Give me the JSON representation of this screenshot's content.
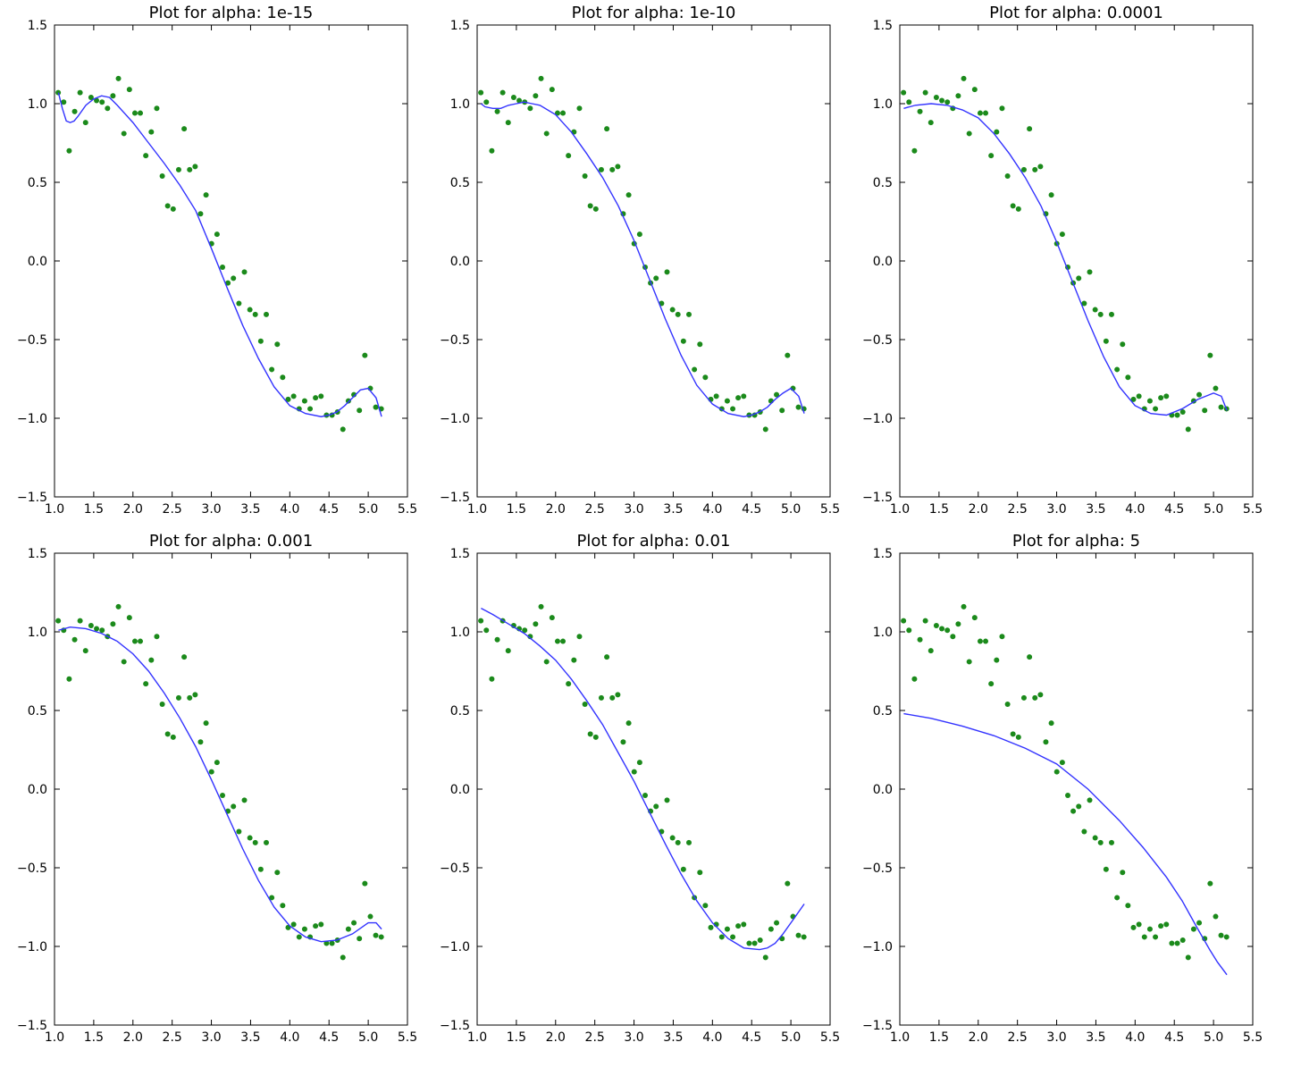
{
  "figure": {
    "background": "#ffffff"
  },
  "style": {
    "point_color": "#1b8a1b",
    "line_color": "#3333ff"
  },
  "axes_common": {
    "xlim": [
      1.0,
      5.5
    ],
    "ylim": [
      -1.5,
      1.5
    ],
    "xticks": [
      "1.0",
      "1.5",
      "2.0",
      "2.5",
      "3.0",
      "3.5",
      "4.0",
      "4.5",
      "5.0",
      "5.5"
    ],
    "yticks": [
      "1.5",
      "1.0",
      "0.5",
      "0.0",
      "−0.5",
      "−1.0",
      "−1.5"
    ]
  },
  "scatter_data": {
    "x": [
      1.047,
      1.117,
      1.187,
      1.257,
      1.326,
      1.396,
      1.466,
      1.536,
      1.606,
      1.676,
      1.745,
      1.815,
      1.885,
      1.955,
      2.025,
      2.094,
      2.164,
      2.234,
      2.304,
      2.374,
      2.443,
      2.513,
      2.583,
      2.653,
      2.723,
      2.793,
      2.862,
      2.932,
      3.002,
      3.072,
      3.142,
      3.211,
      3.281,
      3.351,
      3.421,
      3.491,
      3.56,
      3.63,
      3.7,
      3.77,
      3.84,
      3.909,
      3.979,
      4.049,
      4.119,
      4.189,
      4.259,
      4.328,
      4.398,
      4.468,
      4.538,
      4.608,
      4.677,
      4.747,
      4.817,
      4.887,
      4.957,
      5.027,
      5.096,
      5.166
    ],
    "y": [
      1.07,
      1.01,
      0.7,
      0.95,
      1.07,
      0.88,
      1.04,
      1.02,
      1.01,
      0.97,
      1.05,
      1.16,
      0.81,
      1.09,
      0.94,
      0.94,
      0.67,
      0.82,
      0.97,
      0.54,
      0.35,
      0.33,
      0.58,
      0.84,
      0.58,
      0.6,
      0.3,
      0.42,
      0.11,
      0.17,
      -0.04,
      -0.14,
      -0.11,
      -0.27,
      -0.07,
      -0.31,
      -0.34,
      -0.51,
      -0.34,
      -0.69,
      -0.53,
      -0.74,
      -0.88,
      -0.86,
      -0.94,
      -0.89,
      -0.94,
      -0.87,
      -0.86,
      -0.98,
      -0.98,
      -0.96,
      -1.07,
      -0.89,
      -0.85,
      -0.95,
      -0.6,
      -0.81,
      -0.93,
      -0.94
    ]
  },
  "chart_data": [
    {
      "type": "scatter+line",
      "title": "Plot for alpha: 1e-15",
      "fit_curve": {
        "x": [
          1.05,
          1.1,
          1.15,
          1.2,
          1.25,
          1.3,
          1.4,
          1.5,
          1.6,
          1.7,
          1.8,
          2.0,
          2.2,
          2.4,
          2.6,
          2.8,
          3.0,
          3.2,
          3.4,
          3.6,
          3.8,
          4.0,
          4.2,
          4.4,
          4.5,
          4.6,
          4.7,
          4.8,
          4.9,
          5.0,
          5.1,
          5.17
        ],
        "y": [
          1.07,
          0.97,
          0.89,
          0.88,
          0.89,
          0.92,
          0.99,
          1.03,
          1.05,
          1.04,
          0.99,
          0.88,
          0.75,
          0.62,
          0.48,
          0.32,
          0.08,
          -0.17,
          -0.41,
          -0.62,
          -0.8,
          -0.92,
          -0.97,
          -0.99,
          -0.98,
          -0.96,
          -0.92,
          -0.87,
          -0.82,
          -0.81,
          -0.87,
          -0.99
        ]
      }
    },
    {
      "type": "scatter+line",
      "title": "Plot for alpha: 1e-10",
      "fit_curve": {
        "x": [
          1.05,
          1.1,
          1.2,
          1.3,
          1.4,
          1.5,
          1.6,
          1.7,
          1.8,
          2.0,
          2.2,
          2.4,
          2.6,
          2.8,
          3.0,
          3.2,
          3.4,
          3.6,
          3.8,
          4.0,
          4.2,
          4.4,
          4.5,
          4.6,
          4.7,
          4.8,
          4.9,
          5.0,
          5.1,
          5.17
        ],
        "y": [
          1.0,
          0.98,
          0.97,
          0.97,
          0.99,
          1.0,
          1.01,
          1.0,
          0.99,
          0.93,
          0.82,
          0.68,
          0.53,
          0.35,
          0.13,
          -0.12,
          -0.37,
          -0.6,
          -0.79,
          -0.91,
          -0.97,
          -0.99,
          -0.98,
          -0.96,
          -0.93,
          -0.88,
          -0.84,
          -0.81,
          -0.86,
          -0.97
        ]
      }
    },
    {
      "type": "scatter+line",
      "title": "Plot for alpha: 0.0001",
      "fit_curve": {
        "x": [
          1.05,
          1.2,
          1.4,
          1.6,
          1.8,
          2.0,
          2.2,
          2.4,
          2.6,
          2.8,
          3.0,
          3.2,
          3.4,
          3.6,
          3.8,
          4.0,
          4.2,
          4.4,
          4.6,
          4.8,
          5.0,
          5.1,
          5.17
        ],
        "y": [
          0.97,
          0.99,
          1.0,
          0.99,
          0.96,
          0.91,
          0.81,
          0.68,
          0.53,
          0.35,
          0.12,
          -0.13,
          -0.38,
          -0.61,
          -0.8,
          -0.92,
          -0.97,
          -0.98,
          -0.94,
          -0.88,
          -0.84,
          -0.86,
          -0.95
        ]
      }
    },
    {
      "type": "scatter+line",
      "title": "Plot for alpha: 0.001",
      "fit_curve": {
        "x": [
          1.05,
          1.2,
          1.4,
          1.6,
          1.8,
          2.0,
          2.2,
          2.4,
          2.6,
          2.8,
          3.0,
          3.2,
          3.4,
          3.6,
          3.8,
          4.0,
          4.2,
          4.4,
          4.6,
          4.8,
          5.0,
          5.1,
          5.17
        ],
        "y": [
          1.01,
          1.03,
          1.02,
          0.99,
          0.94,
          0.86,
          0.75,
          0.61,
          0.45,
          0.27,
          0.06,
          -0.16,
          -0.38,
          -0.58,
          -0.75,
          -0.87,
          -0.94,
          -0.97,
          -0.96,
          -0.92,
          -0.85,
          -0.85,
          -0.89
        ]
      }
    },
    {
      "type": "scatter+line",
      "title": "Plot for alpha: 0.01",
      "fit_curve": {
        "x": [
          1.05,
          1.2,
          1.4,
          1.6,
          1.8,
          2.0,
          2.2,
          2.4,
          2.6,
          2.8,
          3.0,
          3.2,
          3.4,
          3.6,
          3.8,
          4.0,
          4.2,
          4.4,
          4.6,
          4.7,
          4.8,
          4.9,
          5.0,
          5.1,
          5.17
        ],
        "y": [
          1.15,
          1.11,
          1.05,
          0.99,
          0.91,
          0.82,
          0.7,
          0.56,
          0.41,
          0.23,
          0.05,
          -0.15,
          -0.35,
          -0.54,
          -0.71,
          -0.85,
          -0.95,
          -1.01,
          -1.02,
          -1.01,
          -0.98,
          -0.92,
          -0.85,
          -0.78,
          -0.73
        ]
      }
    },
    {
      "type": "scatter+line",
      "title": "Plot for alpha: 5",
      "fit_curve": {
        "x": [
          1.05,
          1.4,
          1.8,
          2.2,
          2.6,
          3.0,
          3.4,
          3.8,
          4.1,
          4.4,
          4.6,
          4.8,
          4.95,
          5.05,
          5.17
        ],
        "y": [
          0.48,
          0.45,
          0.4,
          0.34,
          0.26,
          0.16,
          0.0,
          -0.2,
          -0.37,
          -0.56,
          -0.71,
          -0.89,
          -1.02,
          -1.1,
          -1.18
        ]
      }
    }
  ]
}
